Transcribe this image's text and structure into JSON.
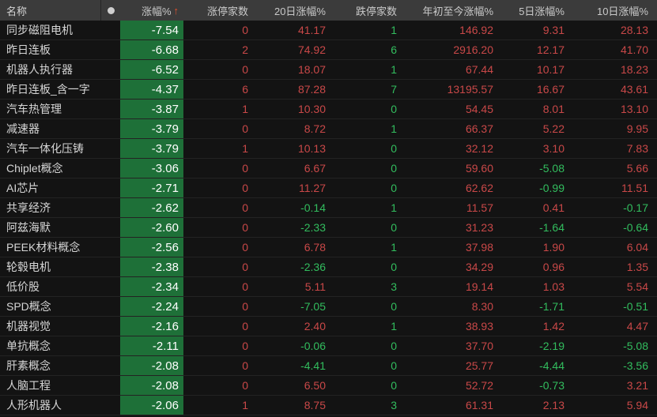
{
  "header": {
    "name": "名称",
    "indicator_icon": "dot-icon",
    "change": "涨幅%",
    "sort_arrow": "↑",
    "limit_up": "涨停家数",
    "d20": "20日涨幅%",
    "limit_down": "跌停家数",
    "ytd": "年初至今涨幅%",
    "d5": "5日涨幅%",
    "d10": "10日涨幅%"
  },
  "colors": {
    "up_red": "#c94848",
    "down_green": "#32bd5e",
    "sorted_column_bg": "#1e7038",
    "header_bg": "#3b3b3b",
    "background": "#131313",
    "name_text": "#d6d6d6",
    "sorted_column_text": "#ffffff",
    "sort_arrow": "#e5502e"
  },
  "rows": [
    {
      "name": "同步磁阻电机",
      "change": "-7.54",
      "limit_up": "0",
      "d20": "41.17",
      "limit_down": "1",
      "ytd": "146.92",
      "d5": "9.31",
      "d10": "28.13"
    },
    {
      "name": "昨日连板",
      "change": "-6.68",
      "limit_up": "2",
      "d20": "74.92",
      "limit_down": "6",
      "ytd": "2916.20",
      "d5": "12.17",
      "d10": "41.70"
    },
    {
      "name": "机器人执行器",
      "change": "-6.52",
      "limit_up": "0",
      "d20": "18.07",
      "limit_down": "1",
      "ytd": "67.44",
      "d5": "10.17",
      "d10": "18.23"
    },
    {
      "name": "昨日连板_含一字",
      "change": "-4.37",
      "limit_up": "6",
      "d20": "87.28",
      "limit_down": "7",
      "ytd": "13195.57",
      "d5": "16.67",
      "d10": "43.61"
    },
    {
      "name": "汽车热管理",
      "change": "-3.87",
      "limit_up": "1",
      "d20": "10.30",
      "limit_down": "0",
      "ytd": "54.45",
      "d5": "8.01",
      "d10": "13.10"
    },
    {
      "name": "减速器",
      "change": "-3.79",
      "limit_up": "0",
      "d20": "8.72",
      "limit_down": "1",
      "ytd": "66.37",
      "d5": "5.22",
      "d10": "9.95"
    },
    {
      "name": "汽车一体化压铸",
      "change": "-3.79",
      "limit_up": "1",
      "d20": "10.13",
      "limit_down": "0",
      "ytd": "32.12",
      "d5": "3.10",
      "d10": "7.83"
    },
    {
      "name": "Chiplet概念",
      "change": "-3.06",
      "limit_up": "0",
      "d20": "6.67",
      "limit_down": "0",
      "ytd": "59.60",
      "d5": "-5.08",
      "d10": "5.66"
    },
    {
      "name": "AI芯片",
      "change": "-2.71",
      "limit_up": "0",
      "d20": "11.27",
      "limit_down": "0",
      "ytd": "62.62",
      "d5": "-0.99",
      "d10": "11.51"
    },
    {
      "name": "共享经济",
      "change": "-2.62",
      "limit_up": "0",
      "d20": "-0.14",
      "limit_down": "1",
      "ytd": "11.57",
      "d5": "0.41",
      "d10": "-0.17"
    },
    {
      "name": "阿兹海默",
      "change": "-2.60",
      "limit_up": "0",
      "d20": "-2.33",
      "limit_down": "0",
      "ytd": "31.23",
      "d5": "-1.64",
      "d10": "-0.64"
    },
    {
      "name": "PEEK材料概念",
      "change": "-2.56",
      "limit_up": "0",
      "d20": "6.78",
      "limit_down": "1",
      "ytd": "37.98",
      "d5": "1.90",
      "d10": "6.04"
    },
    {
      "name": "轮毂电机",
      "change": "-2.38",
      "limit_up": "0",
      "d20": "-2.36",
      "limit_down": "0",
      "ytd": "34.29",
      "d5": "0.96",
      "d10": "1.35"
    },
    {
      "name": "低价股",
      "change": "-2.34",
      "limit_up": "0",
      "d20": "5.11",
      "limit_down": "3",
      "ytd": "19.14",
      "d5": "1.03",
      "d10": "5.54"
    },
    {
      "name": "SPD概念",
      "change": "-2.24",
      "limit_up": "0",
      "d20": "-7.05",
      "limit_down": "0",
      "ytd": "8.30",
      "d5": "-1.71",
      "d10": "-0.51"
    },
    {
      "name": "机器视觉",
      "change": "-2.16",
      "limit_up": "0",
      "d20": "2.40",
      "limit_down": "1",
      "ytd": "38.93",
      "d5": "1.42",
      "d10": "4.47"
    },
    {
      "name": "单抗概念",
      "change": "-2.11",
      "limit_up": "0",
      "d20": "-0.06",
      "limit_down": "0",
      "ytd": "37.70",
      "d5": "-2.19",
      "d10": "-5.08"
    },
    {
      "name": "肝素概念",
      "change": "-2.08",
      "limit_up": "0",
      "d20": "-4.41",
      "limit_down": "0",
      "ytd": "25.77",
      "d5": "-4.44",
      "d10": "-3.56"
    },
    {
      "name": "人脑工程",
      "change": "-2.08",
      "limit_up": "0",
      "d20": "6.50",
      "limit_down": "0",
      "ytd": "52.72",
      "d5": "-0.73",
      "d10": "3.21"
    },
    {
      "name": "人形机器人",
      "change": "-2.06",
      "limit_up": "1",
      "d20": "8.75",
      "limit_down": "3",
      "ytd": "61.31",
      "d5": "2.13",
      "d10": "5.94"
    }
  ]
}
